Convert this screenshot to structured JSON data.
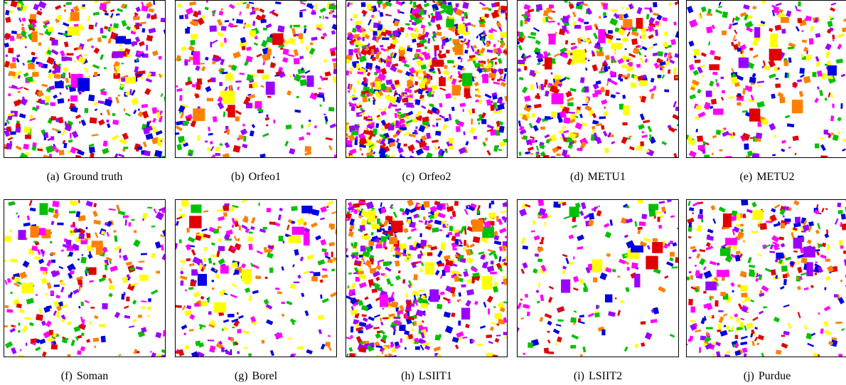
{
  "figure": {
    "panels": [
      {
        "label": "(a)",
        "caption": "Ground truth"
      },
      {
        "label": "(b)",
        "caption": "Orfeo1"
      },
      {
        "label": "(c)",
        "caption": "Orfeo2"
      },
      {
        "label": "(d)",
        "caption": "METU1"
      },
      {
        "label": "(e)",
        "caption": "METU2"
      },
      {
        "label": "(f)",
        "caption": "Soman"
      },
      {
        "label": "(g)",
        "caption": "Borel"
      },
      {
        "label": "(h)",
        "caption": "LSIIT1"
      },
      {
        "label": "(i)",
        "caption": "LSIIT2"
      },
      {
        "label": "(j)",
        "caption": "Purdue"
      }
    ]
  }
}
